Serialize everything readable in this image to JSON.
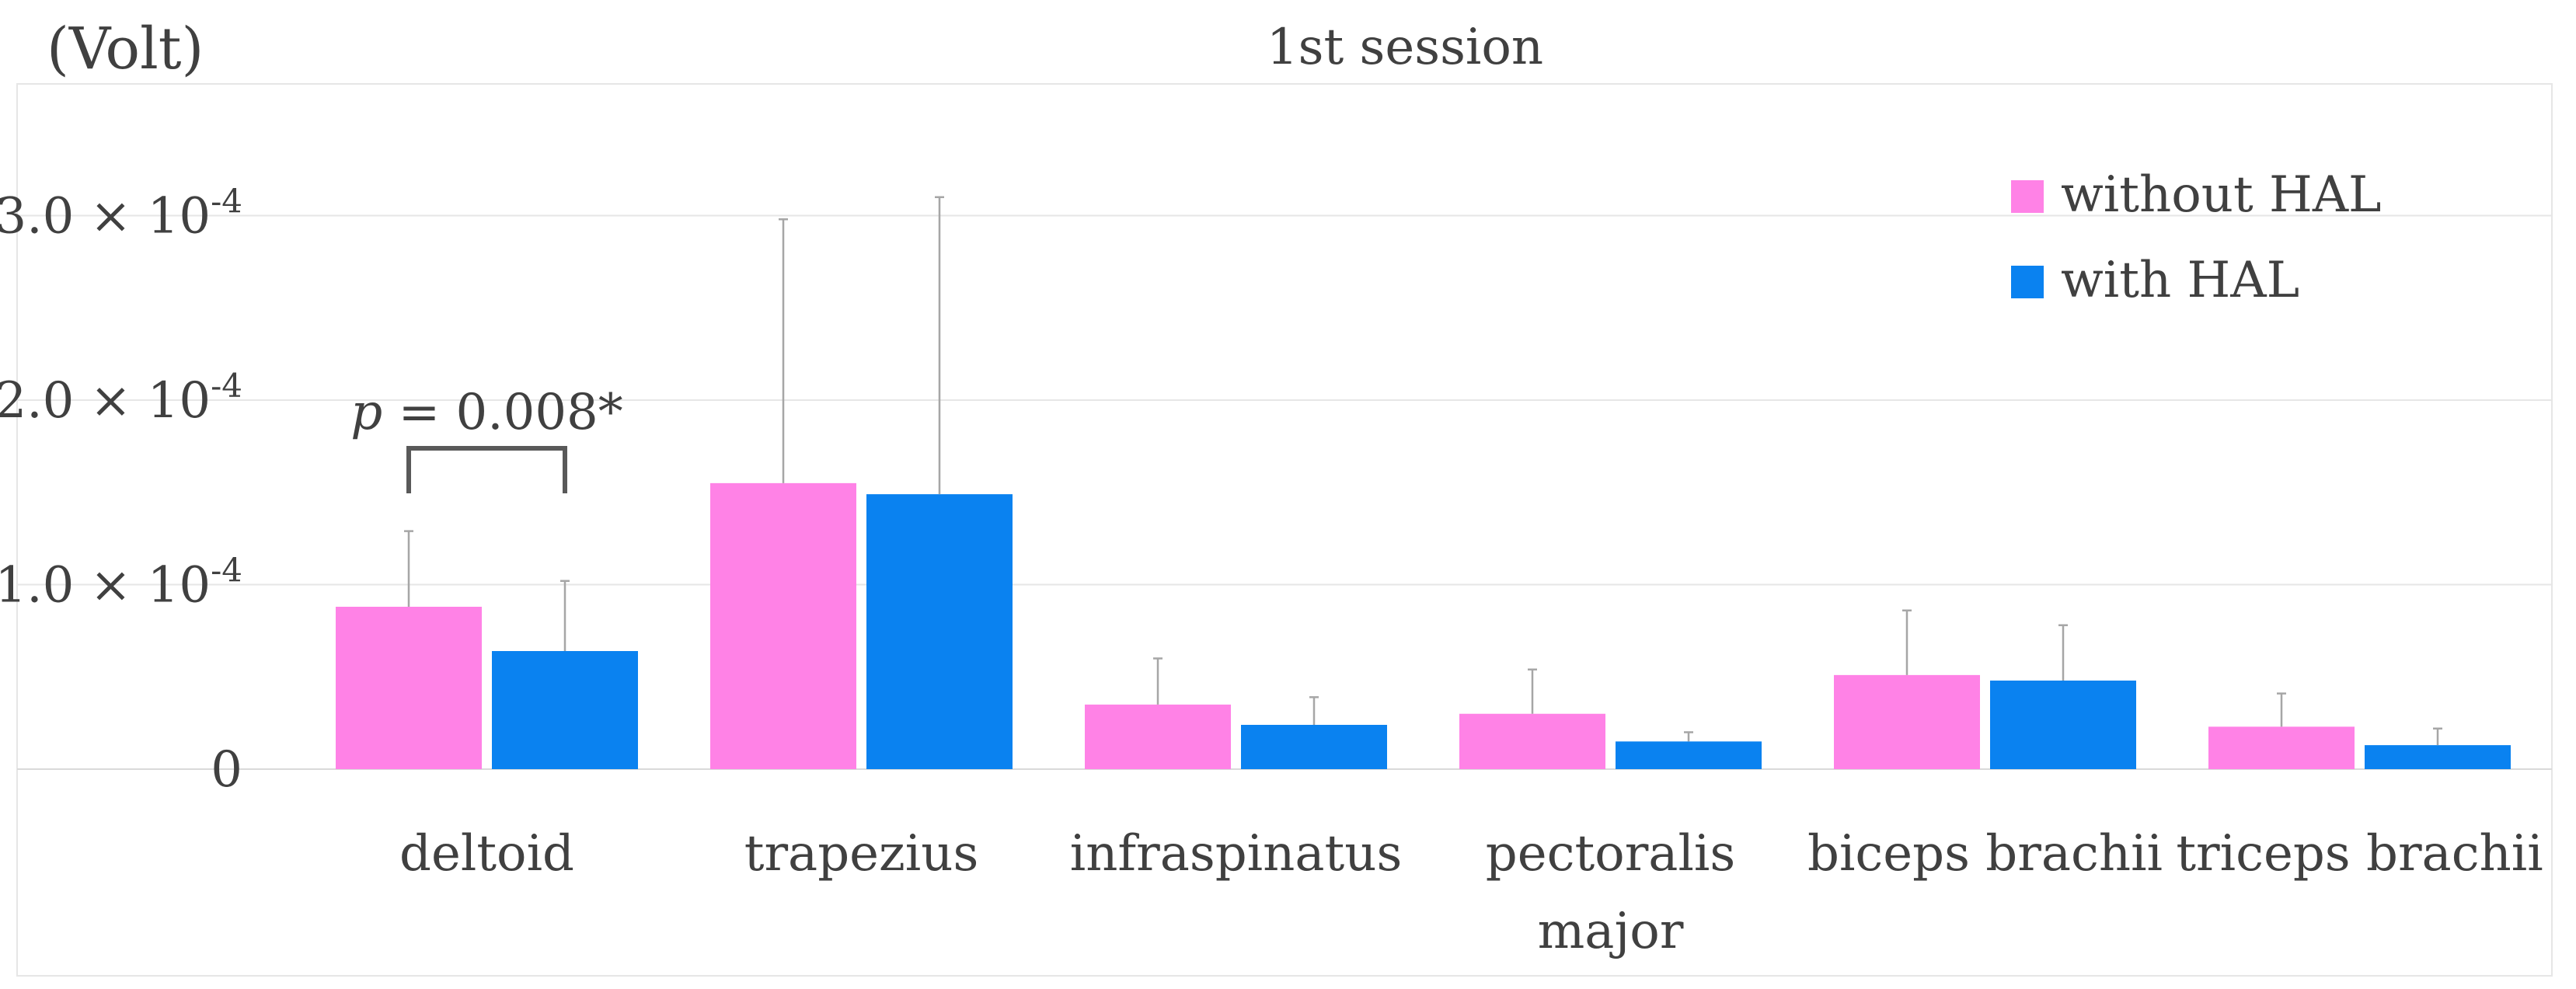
{
  "chart_data": {
    "type": "bar",
    "title": "1st session",
    "ylabel": "(Volt)",
    "ylim": [
      0,
      0.00033
    ],
    "y_ticks": [
      {
        "value": 0,
        "mantissa": "0",
        "exponent": ""
      },
      {
        "value": 0.0001,
        "mantissa": "1.0 × 10",
        "exponent": "-4"
      },
      {
        "value": 0.0002,
        "mantissa": "2.0 × 10",
        "exponent": "-4"
      },
      {
        "value": 0.0003,
        "mantissa": "3.0 × 10",
        "exponent": "-4"
      }
    ],
    "grid": true,
    "legend_position": "top-right",
    "categories": [
      [
        "deltoid"
      ],
      [
        "trapezius"
      ],
      [
        "infraspinatus"
      ],
      [
        "pectoralis",
        "major"
      ],
      [
        "biceps brachii"
      ],
      [
        "triceps brachii"
      ]
    ],
    "series": [
      {
        "name": "without HAL",
        "color": "#ff82e6",
        "values": [
          8.8e-05,
          0.000155,
          3.5e-05,
          3e-05,
          5.1e-05,
          2.3e-05
        ],
        "error": [
          4.1e-05,
          0.000143,
          2.5e-05,
          2.4e-05,
          3.5e-05,
          1.8e-05
        ]
      },
      {
        "name": "with HAL",
        "color": "#0a82f0",
        "values": [
          6.4e-05,
          0.000149,
          2.4e-05,
          1.5e-05,
          4.8e-05,
          1.3e-05
        ],
        "error": [
          3.8e-05,
          0.000161,
          1.5e-05,
          5e-06,
          3e-05,
          9e-06
        ]
      }
    ],
    "annotations": [
      {
        "category_index": 0,
        "p_symbol": "p",
        "text": " = 0.008*"
      }
    ]
  }
}
